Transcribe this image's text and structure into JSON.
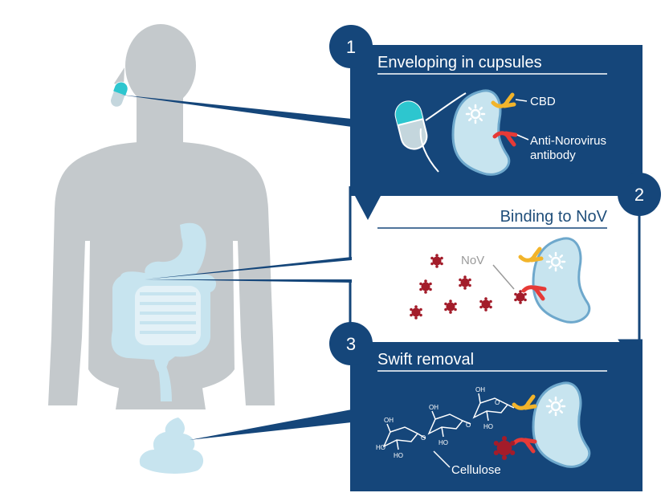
{
  "colors": {
    "navy": "#15467a",
    "silhouette": "#c4c9cc",
    "organ": "#c7e4ef",
    "capsule_teal": "#2dc6cf",
    "cbd_yellow": "#f2b42a",
    "antibody_red": "#e63a37",
    "virus": "#a31c2a"
  },
  "steps": [
    {
      "number": "1",
      "title": "Enveloping in cupsules"
    },
    {
      "number": "2",
      "title": "Binding to NoV"
    },
    {
      "number": "3",
      "title": "Swift removal"
    }
  ],
  "labels": {
    "cbd": "CBD",
    "antibody_line1": "Anti-Norovirus",
    "antibody_line2": "antibody",
    "nov": "NoV",
    "cellulose": "Cellulose",
    "oh": "OH",
    "ho": "HO",
    "o": "O"
  },
  "icons": {
    "capsule": "capsule-icon",
    "bacterium": "bacterium-icon",
    "virus": "virus-particle-icon",
    "stool": "stool-icon"
  }
}
